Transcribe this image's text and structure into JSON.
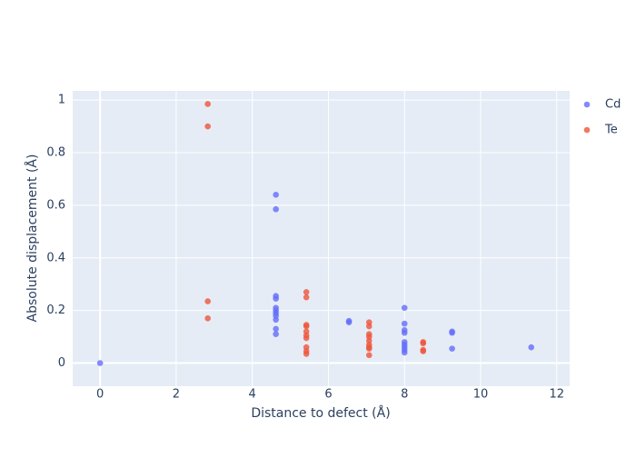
{
  "chart_data": {
    "type": "scatter",
    "x_label": "Distance to defect (Å)",
    "y_label": "Absolute displacement (Å)",
    "xlim": [
      -0.72,
      12.34
    ],
    "ylim": [
      -0.088,
      1.035
    ],
    "xticks": [
      0,
      2,
      4,
      6,
      8,
      10,
      12
    ],
    "yticks": [
      0,
      0.2,
      0.4,
      0.6,
      0.8,
      1
    ],
    "grid": true,
    "legend": "right",
    "opacity": 0.8,
    "series": [
      {
        "name": "Cd",
        "color": "#636efa",
        "x": [
          0,
          4.62,
          4.62,
          4.62,
          4.62,
          4.62,
          4.62,
          4.62,
          4.62,
          4.62,
          4.62,
          4.62,
          6.54,
          6.54,
          8.0,
          8.0,
          8.0,
          8.0,
          8.0,
          8.0,
          8.0,
          8.0,
          8.0,
          9.25,
          9.25,
          9.25,
          11.33
        ],
        "values": [
          0,
          0.64,
          0.585,
          0.255,
          0.245,
          0.21,
          0.2,
          0.19,
          0.18,
          0.165,
          0.13,
          0.11,
          0.16,
          0.155,
          0.21,
          0.15,
          0.125,
          0.115,
          0.08,
          0.07,
          0.06,
          0.05,
          0.04,
          0.12,
          0.115,
          0.055,
          0.06
        ]
      },
      {
        "name": "Te",
        "color": "#EF553B",
        "x": [
          2.83,
          2.83,
          2.83,
          2.83,
          5.42,
          5.42,
          5.42,
          5.42,
          5.42,
          5.42,
          5.42,
          5.42,
          5.42,
          5.42,
          7.07,
          7.07,
          7.07,
          7.07,
          7.07,
          7.07,
          7.07,
          7.07,
          7.07,
          8.49,
          8.49,
          8.49,
          8.49
        ],
        "values": [
          0.985,
          0.9,
          0.235,
          0.17,
          0.27,
          0.25,
          0.145,
          0.14,
          0.12,
          0.105,
          0.095,
          0.06,
          0.045,
          0.035,
          0.155,
          0.14,
          0.11,
          0.1,
          0.085,
          0.07,
          0.06,
          0.055,
          0.03,
          0.08,
          0.075,
          0.05,
          0.045
        ]
      }
    ]
  }
}
